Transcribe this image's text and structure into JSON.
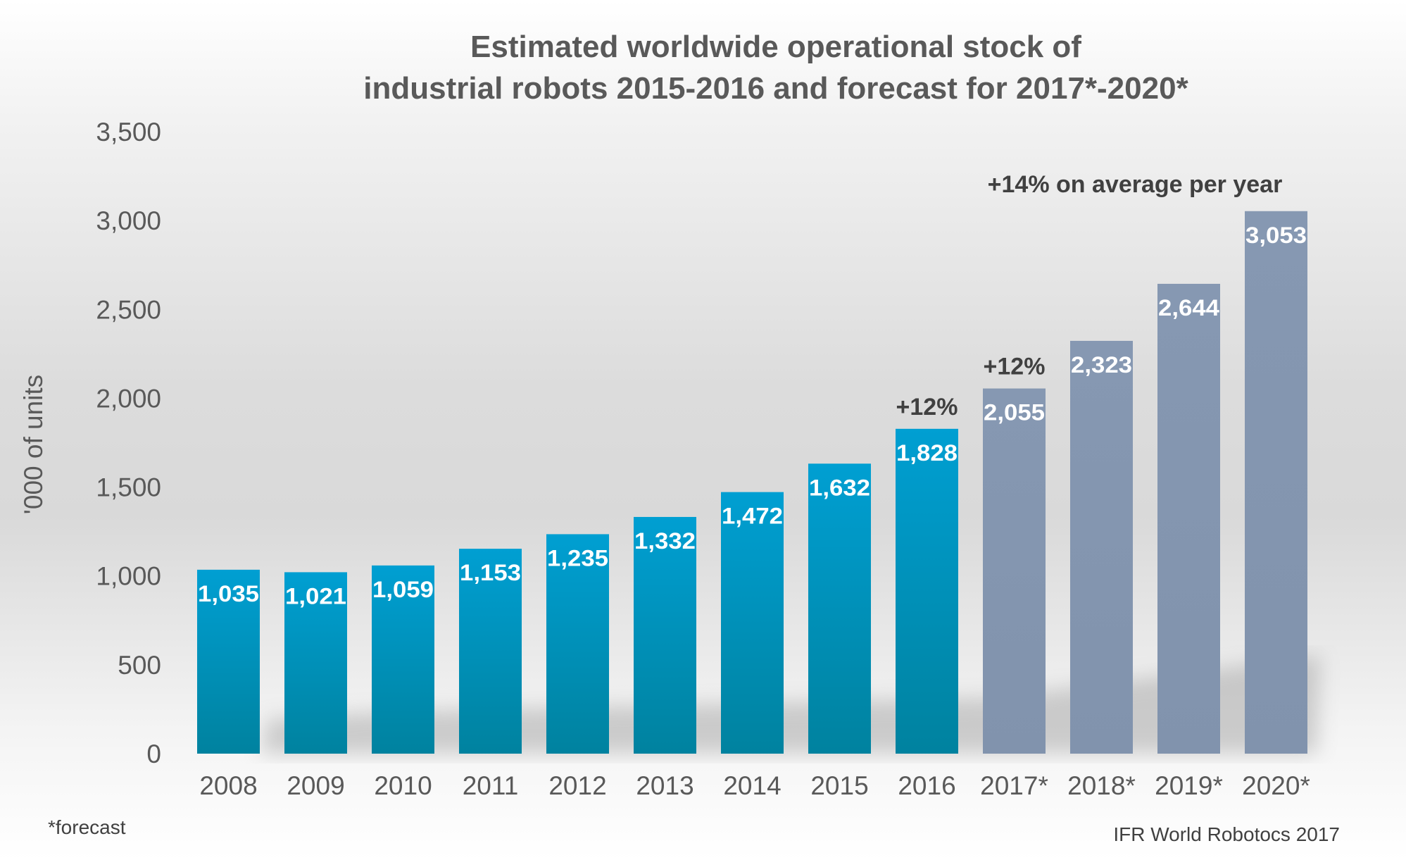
{
  "chart_data": {
    "type": "bar",
    "title": [
      "Estimated worldwide operational stock of",
      "industrial robots 2015-2016 and forecast for 2017*-2020*"
    ],
    "ylabel": "'000 of units",
    "xlabel": "",
    "ylim": [
      0,
      3500
    ],
    "yticks": [
      "0",
      "500",
      "1,000",
      "1,500",
      "2,000",
      "2,500",
      "3,000",
      "3,500"
    ],
    "ytick_values": [
      0,
      500,
      1000,
      1500,
      2000,
      2500,
      3000,
      3500
    ],
    "grid": false,
    "categories": [
      "2008",
      "2009",
      "2010",
      "2011",
      "2012",
      "2013",
      "2014",
      "2015",
      "2016",
      "2017*",
      "2018*",
      "2019*",
      "2020*"
    ],
    "values": [
      1035,
      1021,
      1059,
      1153,
      1235,
      1332,
      1472,
      1632,
      1828,
      2055,
      2323,
      2644,
      3053
    ],
    "data_labels": [
      "1,035",
      "1,021",
      "1,059",
      "1,153",
      "1,235",
      "1,332",
      "1,472",
      "1,632",
      "1,828",
      "2,055",
      "2,323",
      "2,644",
      "3,053"
    ],
    "forecast": [
      false,
      false,
      false,
      false,
      false,
      false,
      false,
      false,
      false,
      true,
      true,
      true,
      true
    ],
    "colors": {
      "actual": "#0099cc",
      "forecast": "#8496b0",
      "text": "#595959"
    },
    "annotations": [
      {
        "text": "+12%",
        "category": "2016"
      },
      {
        "text": "+12%",
        "category": "2017*"
      },
      {
        "text": "+14% on average per year",
        "category": "2019*"
      }
    ]
  },
  "footnote": "*forecast",
  "source": "IFR World Robotocs 2017"
}
